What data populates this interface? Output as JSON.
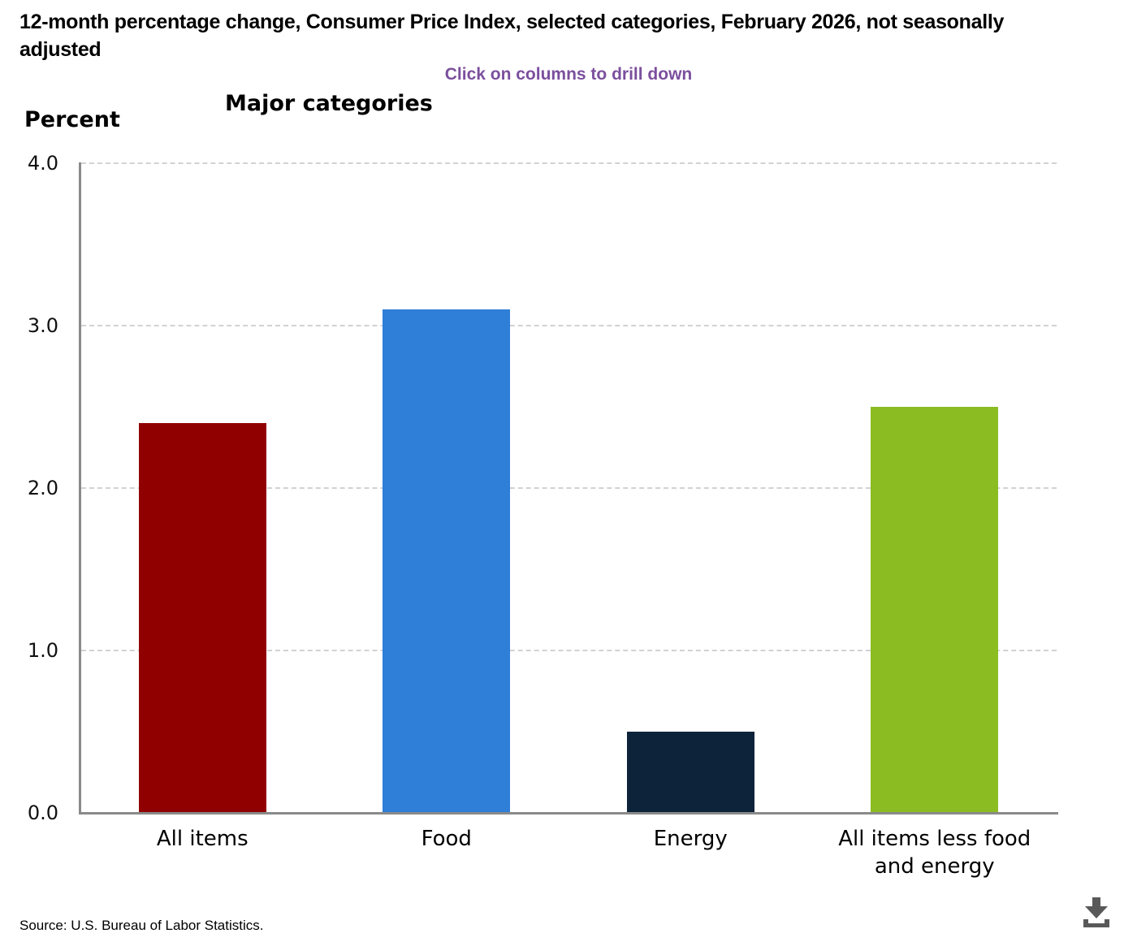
{
  "page": {
    "title": "12-month percentage change, Consumer Price Index, selected categories, February 2026, not seasonally adjusted",
    "drill_hint": "Click on columns to drill down",
    "source": "Source: U.S. Bureau of Labor Statistics."
  },
  "chart_data": {
    "type": "bar",
    "title": "Major categories",
    "xlabel": "",
    "ylabel": "Percent",
    "categories": [
      "All items",
      "Food",
      "Energy",
      "All items less food and energy"
    ],
    "values": [
      2.4,
      3.1,
      0.5,
      2.5
    ],
    "ylim": [
      0,
      4.0
    ],
    "yticks": [
      0,
      1,
      2,
      3,
      4
    ],
    "ytick_labels": [
      "0.0",
      "1.0",
      "2.0",
      "3.0",
      "4.0"
    ],
    "grid": "horizontal-dashed",
    "legend_position": "none",
    "bar_colors": [
      "#910000",
      "#2f7ed8",
      "#0d233a",
      "#8bbc21"
    ],
    "interaction": "columns drill down on click"
  },
  "colors": {
    "hint_purple": "#7b4f9d",
    "gridline": "#d2d2d2",
    "axis_gray": "#8a8a8a",
    "icon_gray": "#595959",
    "text_black": "#000000"
  }
}
